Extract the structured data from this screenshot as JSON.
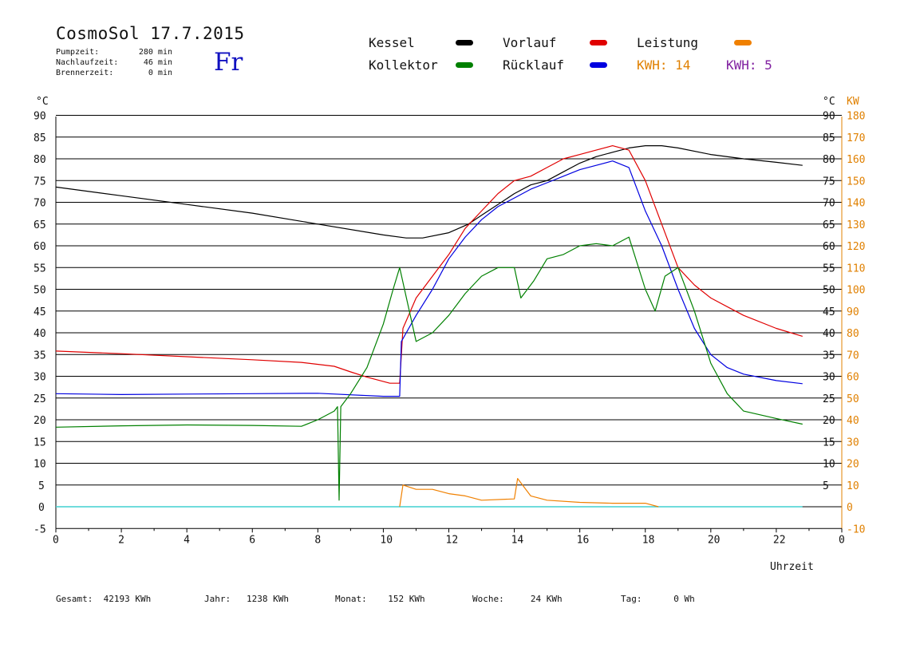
{
  "header": {
    "title": "CosmoSol 17.7.2015",
    "day": "Fr",
    "stats": [
      {
        "label": "Pumpzeit:",
        "value": "280 min"
      },
      {
        "label": "Nachlaufzeit:",
        "value": "46 min"
      },
      {
        "label": "Brennerzeit:",
        "value": "0 min"
      }
    ]
  },
  "legend": [
    {
      "name": "Kessel",
      "color": "#000000"
    },
    {
      "name": "Kollektor",
      "color": "#008000"
    },
    {
      "name": "Vorlauf",
      "color": "#e00000"
    },
    {
      "name": "Rücklauf",
      "color": "#0000e0"
    },
    {
      "name": "Leistung",
      "color": "#f08000"
    }
  ],
  "kwh": [
    {
      "label": "KWH:",
      "value": "14",
      "color": "#e08000"
    },
    {
      "label": "KWH:",
      "value": "5",
      "color": "#8020a0"
    }
  ],
  "footer": [
    {
      "label": "Gesamt:",
      "value": "42193 KWh"
    },
    {
      "label": "Jahr:",
      "value": "1238 KWh"
    },
    {
      "label": "Monat:",
      "value": "152 KWh"
    },
    {
      "label": "Woche:",
      "value": "24 KWh"
    },
    {
      "label": "Tag:",
      "value": "0 Wh"
    }
  ],
  "chart_data": {
    "type": "line",
    "xlabel": "Uhrzeit",
    "xlim": [
      0,
      24
    ],
    "x_ticks": [
      "0",
      "2",
      "4",
      "6",
      "8",
      "10",
      "12",
      "14",
      "16",
      "18",
      "20",
      "22",
      "0"
    ],
    "y_left_unit": "°C",
    "y_left_ticks": [
      "-5",
      "0",
      "5",
      "10",
      "15",
      "20",
      "25",
      "30",
      "35",
      "40",
      "45",
      "50",
      "55",
      "60",
      "65",
      "70",
      "75",
      "80",
      "85",
      "90"
    ],
    "y_right_unit": "°C",
    "y_right_ticks": [
      "5",
      "10",
      "15",
      "20",
      "25",
      "30",
      "35",
      "40",
      "45",
      "50",
      "55",
      "60",
      "65",
      "70",
      "75",
      "80",
      "85",
      "90"
    ],
    "y_power_unit": "KW",
    "y_power_ticks": [
      "-10",
      "0",
      "10",
      "20",
      "30",
      "40",
      "50",
      "60",
      "70",
      "80",
      "90",
      "100",
      "110",
      "120",
      "130",
      "140",
      "150",
      "160",
      "170",
      "180"
    ],
    "ylim": [
      -5,
      92
    ],
    "grid": "horizontal",
    "series": [
      {
        "name": "Kessel",
        "color": "#000000",
        "points": [
          [
            0,
            73.5
          ],
          [
            2,
            71.5
          ],
          [
            4,
            69.5
          ],
          [
            6,
            67.5
          ],
          [
            8,
            65
          ],
          [
            10,
            62.5
          ],
          [
            10.7,
            61.8
          ],
          [
            11.2,
            61.8
          ],
          [
            12,
            63
          ],
          [
            12.6,
            65
          ],
          [
            13,
            67
          ],
          [
            13.6,
            70
          ],
          [
            14,
            72
          ],
          [
            14.5,
            74
          ],
          [
            15,
            75
          ],
          [
            15.5,
            77
          ],
          [
            16,
            79
          ],
          [
            16.5,
            80.5
          ],
          [
            17,
            81.5
          ],
          [
            17.5,
            82.5
          ],
          [
            18,
            83
          ],
          [
            18.5,
            83
          ],
          [
            19,
            82.5
          ],
          [
            20,
            81
          ],
          [
            21,
            80
          ],
          [
            22,
            79.2
          ],
          [
            22.8,
            78.5
          ]
        ]
      },
      {
        "name": "Vorlauf",
        "color": "#e00000",
        "points": [
          [
            0,
            35.8
          ],
          [
            2,
            35.2
          ],
          [
            4,
            34.5
          ],
          [
            6,
            33.8
          ],
          [
            7.5,
            33.2
          ],
          [
            8.5,
            32.3
          ],
          [
            9,
            31
          ],
          [
            9.5,
            29.8
          ],
          [
            10.2,
            28.4
          ],
          [
            10.5,
            28.4
          ],
          [
            10.6,
            41
          ],
          [
            11,
            48
          ],
          [
            11.5,
            53
          ],
          [
            12,
            58
          ],
          [
            12.5,
            64
          ],
          [
            13,
            68
          ],
          [
            13.5,
            72
          ],
          [
            14,
            75
          ],
          [
            14.5,
            76
          ],
          [
            15,
            78
          ],
          [
            15.5,
            80
          ],
          [
            16,
            81
          ],
          [
            16.5,
            82
          ],
          [
            17,
            83
          ],
          [
            17.5,
            82
          ],
          [
            18,
            75
          ],
          [
            18.5,
            65
          ],
          [
            19,
            55
          ],
          [
            19.5,
            51
          ],
          [
            20,
            48
          ],
          [
            21,
            44
          ],
          [
            22,
            41
          ],
          [
            22.8,
            39.2
          ]
        ]
      },
      {
        "name": "Rücklauf",
        "color": "#0000e0",
        "points": [
          [
            0,
            26
          ],
          [
            2,
            25.8
          ],
          [
            4,
            25.9
          ],
          [
            6,
            26
          ],
          [
            8,
            26.1
          ],
          [
            10,
            25.4
          ],
          [
            10.5,
            25.4
          ],
          [
            10.55,
            38
          ],
          [
            11,
            44
          ],
          [
            11.5,
            50
          ],
          [
            12,
            57
          ],
          [
            12.5,
            62
          ],
          [
            13,
            66
          ],
          [
            13.5,
            69
          ],
          [
            14,
            71
          ],
          [
            14.5,
            73
          ],
          [
            15,
            74.5
          ],
          [
            15.5,
            76
          ],
          [
            16,
            77.5
          ],
          [
            16.5,
            78.5
          ],
          [
            17,
            79.5
          ],
          [
            17.5,
            78
          ],
          [
            18,
            68
          ],
          [
            18.5,
            60
          ],
          [
            19,
            50
          ],
          [
            19.5,
            41
          ],
          [
            20,
            35
          ],
          [
            20.5,
            32
          ],
          [
            21,
            30.5
          ],
          [
            22,
            29
          ],
          [
            22.8,
            28.3
          ]
        ]
      },
      {
        "name": "Kollektor",
        "color": "#008000",
        "points": [
          [
            0,
            18.3
          ],
          [
            2,
            18.6
          ],
          [
            4,
            18.8
          ],
          [
            6,
            18.7
          ],
          [
            7.5,
            18.5
          ],
          [
            8,
            20
          ],
          [
            8.5,
            22
          ],
          [
            8.6,
            23
          ],
          [
            8.65,
            1.5
          ],
          [
            8.7,
            23
          ],
          [
            9,
            26
          ],
          [
            9.5,
            32
          ],
          [
            10,
            42
          ],
          [
            10.3,
            50
          ],
          [
            10.5,
            55
          ],
          [
            11,
            38
          ],
          [
            11.5,
            40
          ],
          [
            12,
            44
          ],
          [
            12.5,
            49
          ],
          [
            13,
            53
          ],
          [
            13.5,
            55
          ],
          [
            14,
            55
          ],
          [
            14.2,
            48
          ],
          [
            14.6,
            52
          ],
          [
            15,
            57
          ],
          [
            15.5,
            58
          ],
          [
            16,
            60
          ],
          [
            16.5,
            60.5
          ],
          [
            17,
            60
          ],
          [
            17.5,
            62
          ],
          [
            18,
            50
          ],
          [
            18.3,
            45
          ],
          [
            18.6,
            53
          ],
          [
            19,
            55
          ],
          [
            19.5,
            45
          ],
          [
            20,
            33
          ],
          [
            20.5,
            26
          ],
          [
            21,
            22
          ],
          [
            22,
            20.3
          ],
          [
            22.8,
            19
          ]
        ]
      },
      {
        "name": "Leistung",
        "color": "#f08000",
        "points": [
          [
            10.5,
            0
          ],
          [
            10.6,
            5
          ],
          [
            11,
            4
          ],
          [
            11.5,
            4
          ],
          [
            12,
            3
          ],
          [
            12.5,
            2.5
          ],
          [
            13,
            1.5
          ],
          [
            14,
            1.8
          ],
          [
            14.1,
            6.5
          ],
          [
            14.5,
            2.5
          ],
          [
            15,
            1.5
          ],
          [
            16,
            1
          ],
          [
            17,
            0.8
          ],
          [
            18,
            0.8
          ],
          [
            18.4,
            0
          ]
        ]
      }
    ],
    "kwh_series": [
      {
        "name": "KWH: 14",
        "color": "#e08000"
      },
      {
        "name": "KWH: 5",
        "color": "#8020a0"
      }
    ],
    "zero_line_color": "#40d0d0"
  }
}
